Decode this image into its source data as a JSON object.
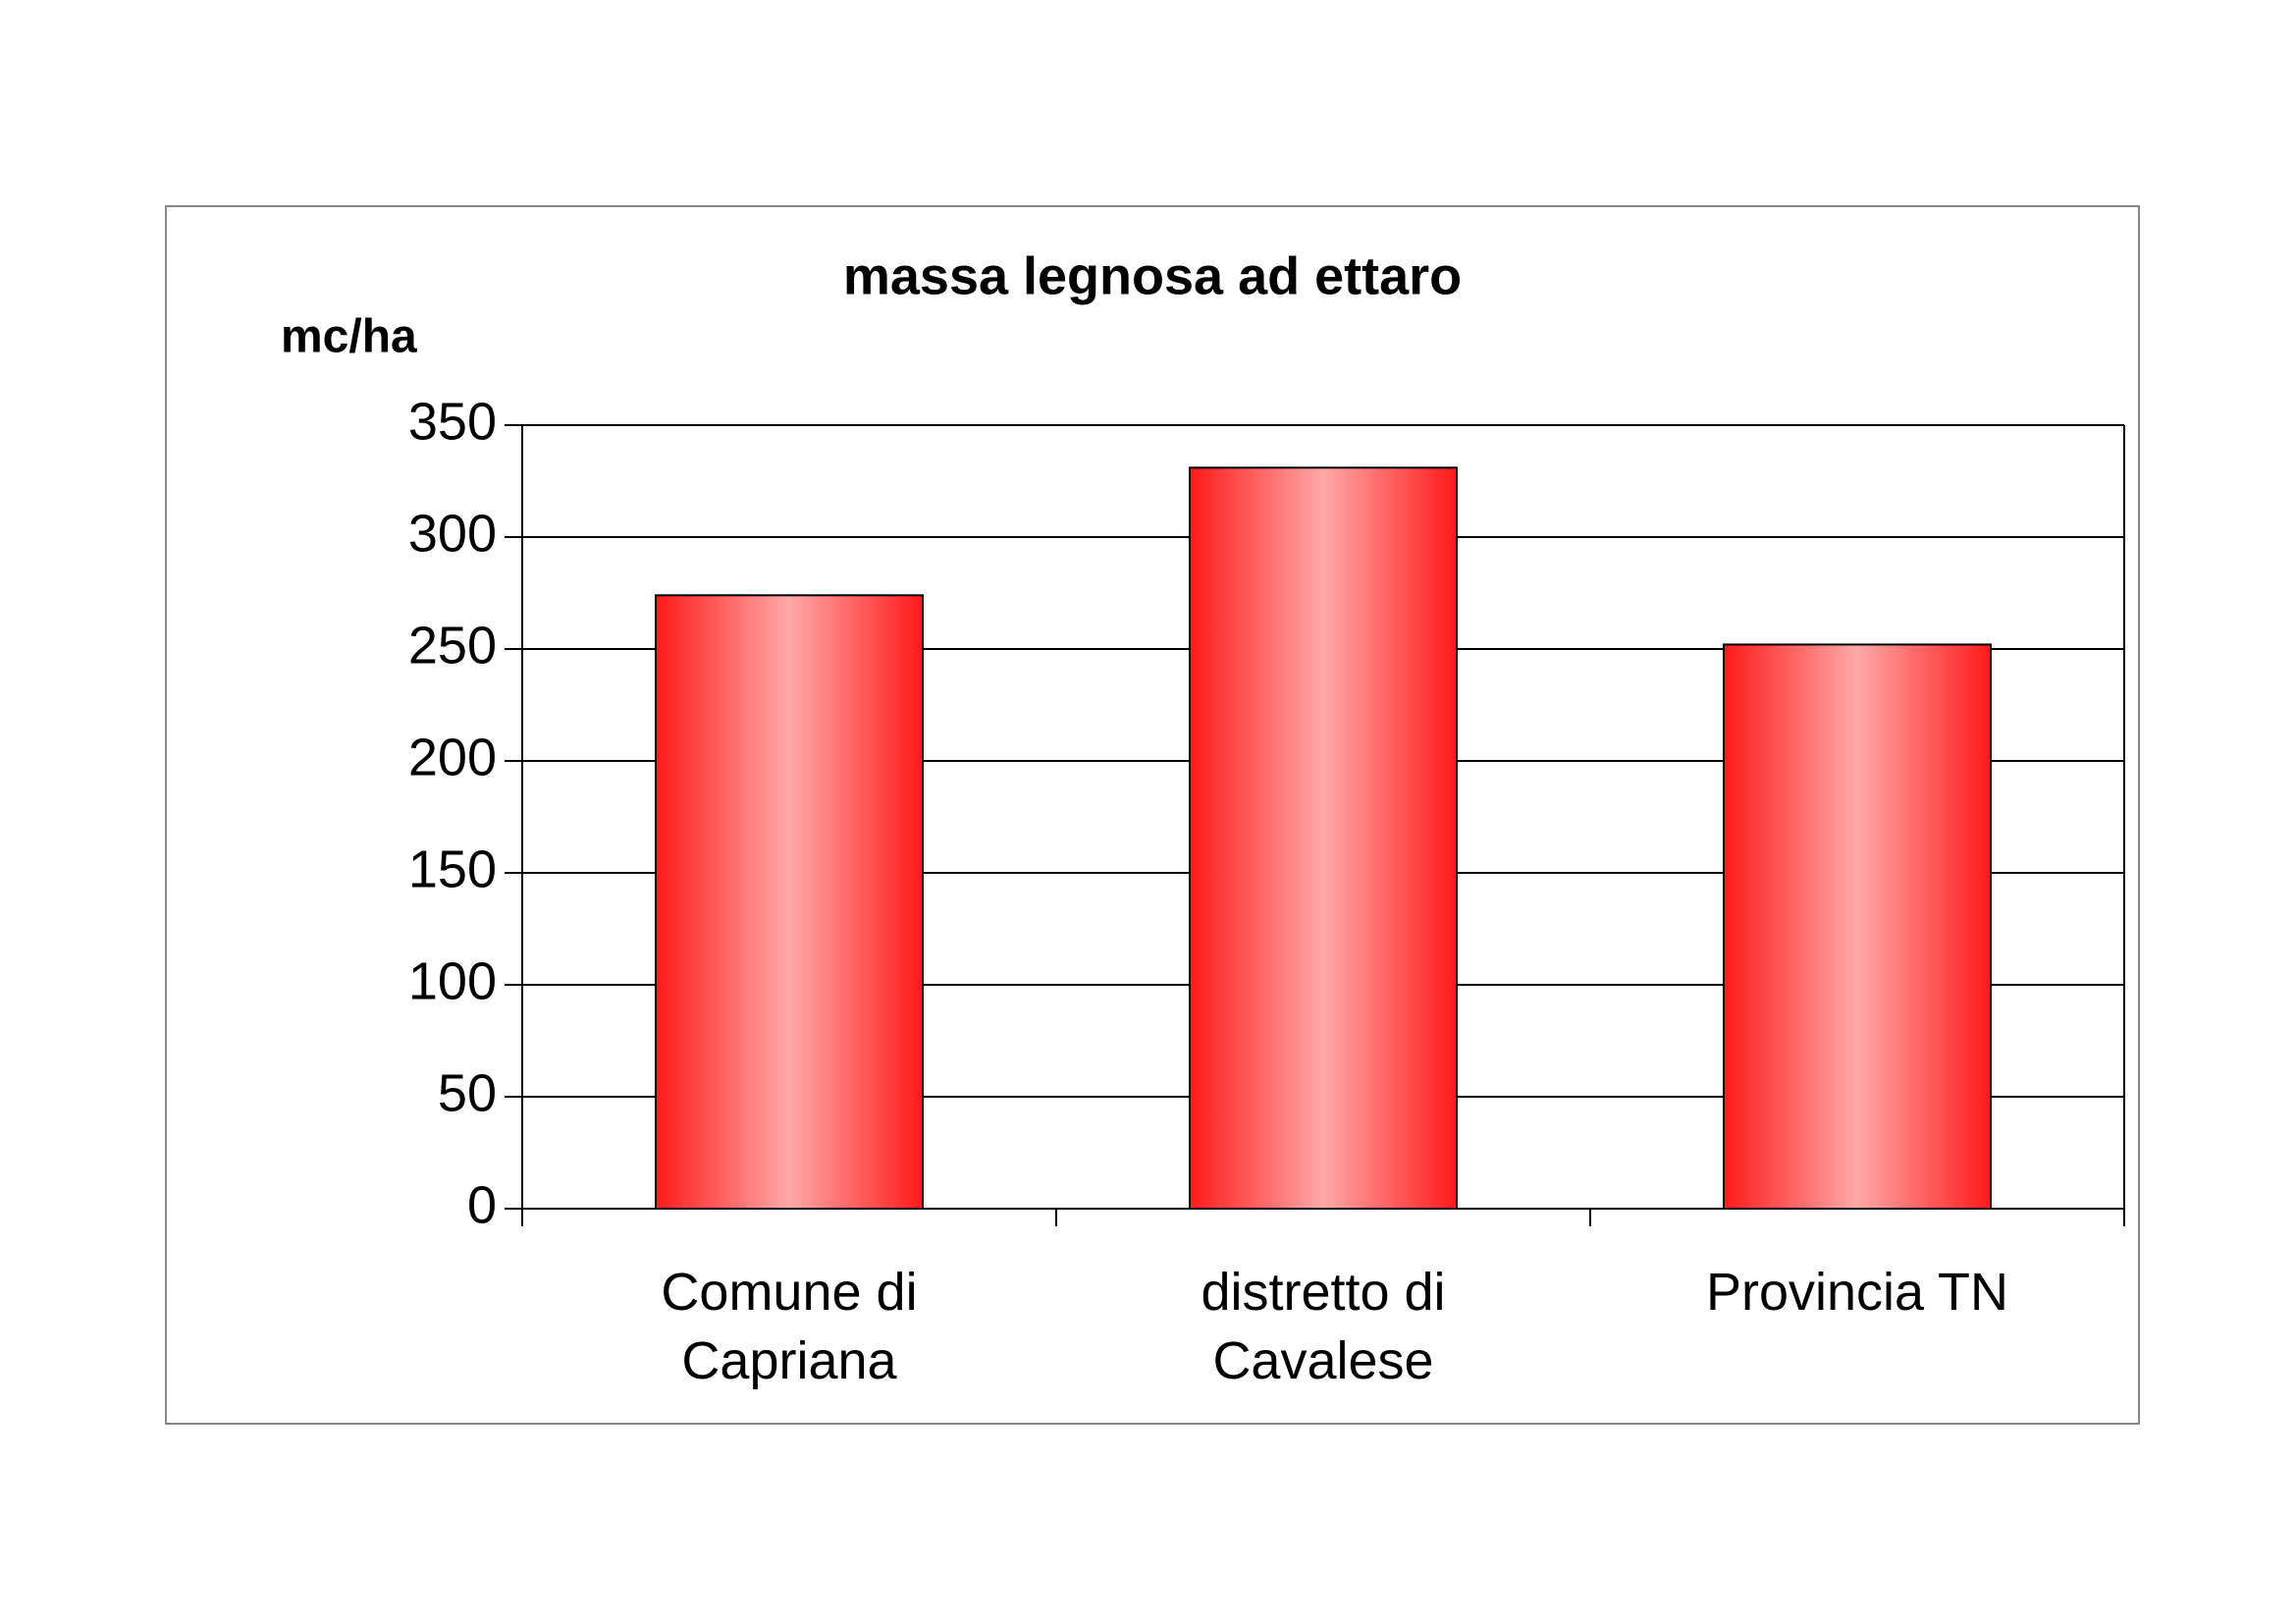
{
  "chart_data": {
    "type": "bar",
    "title": "massa legnosa ad ettaro",
    "y_label": "mc/ha",
    "categories": [
      "Comune di\nCapriana",
      "distretto di\nCavalese",
      "Provincia TN"
    ],
    "values": [
      274,
      331,
      252
    ],
    "color": "#ff0000",
    "ylim": [
      0,
      350
    ],
    "yticks": [
      0,
      50,
      100,
      150,
      200,
      250,
      300,
      350
    ],
    "grid": true
  }
}
